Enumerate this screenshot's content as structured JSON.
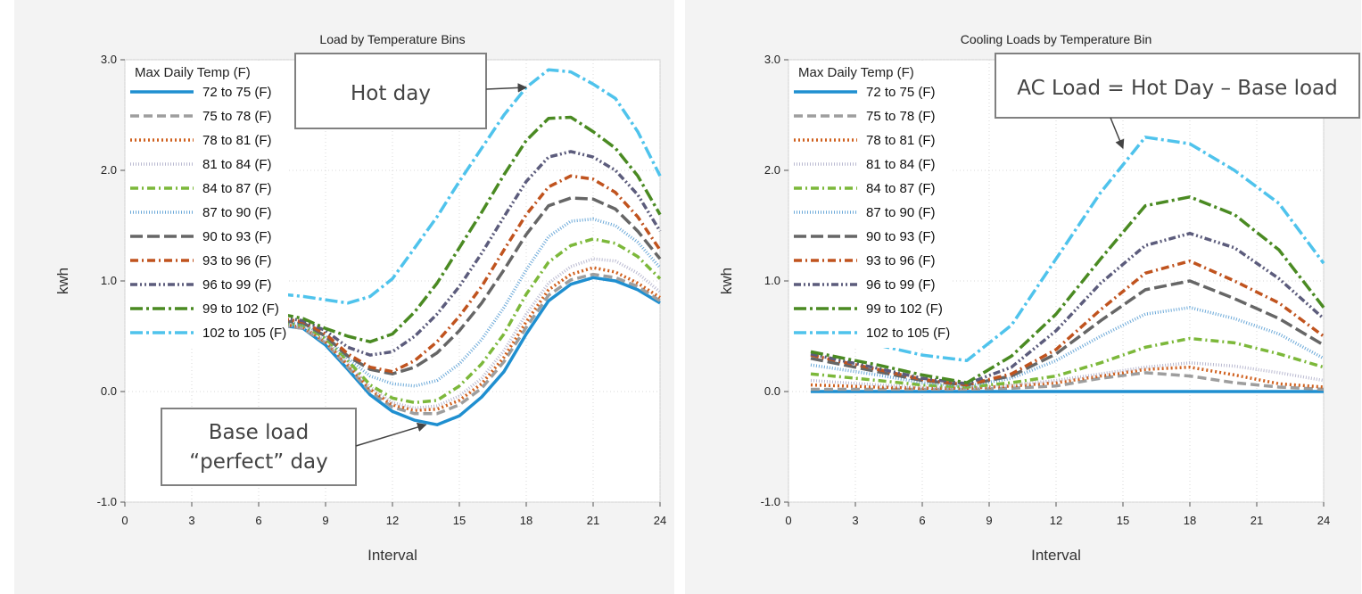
{
  "chart_data": [
    {
      "type": "line",
      "title": "Load by Temperature Bins",
      "xlabel": "Interval",
      "ylabel": "kwh",
      "xlim": [
        0,
        24
      ],
      "ylim": [
        -1.0,
        3.0
      ],
      "xticks": [
        0,
        3,
        6,
        9,
        12,
        15,
        18,
        21,
        24
      ],
      "yticks": [
        "-1.0",
        "0.0",
        "1.0",
        "2.0",
        "3.0"
      ],
      "grid": true,
      "legend": {
        "title": "Max Daily Temp (F)",
        "placement": "top-left"
      },
      "callouts": [
        {
          "text": "Hot day",
          "points_to": [
            18,
            2.75
          ]
        },
        {
          "text": "Base load\n“perfect” day",
          "points_to": [
            13.5,
            -0.3
          ]
        }
      ],
      "series": [
        {
          "name": "72 to 75 (F)",
          "color": "#1f8fd0",
          "dash": "solid",
          "x": [
            7,
            8,
            9,
            10,
            11,
            12,
            13,
            14,
            15,
            16,
            17,
            18,
            19,
            20,
            21,
            22,
            23,
            24
          ],
          "y": [
            0.6,
            0.57,
            0.42,
            0.2,
            -0.03,
            -0.18,
            -0.26,
            -0.3,
            -0.22,
            -0.05,
            0.18,
            0.52,
            0.82,
            0.97,
            1.03,
            1.0,
            0.92,
            0.8
          ]
        },
        {
          "name": "75 to 78 (F)",
          "color": "#9e9e9e",
          "dash": "dashed",
          "x": [
            7,
            8,
            9,
            10,
            11,
            12,
            13,
            14,
            15,
            16,
            17,
            18,
            19,
            20,
            21,
            22,
            23,
            24
          ],
          "y": [
            0.6,
            0.57,
            0.44,
            0.22,
            0.0,
            -0.14,
            -0.2,
            -0.2,
            -0.12,
            0.03,
            0.27,
            0.58,
            0.87,
            1.01,
            1.06,
            1.03,
            0.95,
            0.82
          ]
        },
        {
          "name": "78 to 81 (F)",
          "color": "#d0611f",
          "dash": "dotted",
          "x": [
            7,
            8,
            9,
            10,
            11,
            12,
            13,
            14,
            15,
            16,
            17,
            18,
            19,
            20,
            21,
            22,
            23,
            24
          ],
          "y": [
            0.61,
            0.58,
            0.45,
            0.24,
            0.02,
            -0.12,
            -0.17,
            -0.16,
            -0.08,
            0.07,
            0.31,
            0.63,
            0.92,
            1.06,
            1.12,
            1.08,
            0.98,
            0.85
          ]
        },
        {
          "name": "81 to 84 (F)",
          "color": "#b9b9d0",
          "dash": "fine",
          "x": [
            7,
            8,
            9,
            10,
            11,
            12,
            13,
            14,
            15,
            16,
            17,
            18,
            19,
            20,
            21,
            22,
            23,
            24
          ],
          "y": [
            0.61,
            0.58,
            0.46,
            0.26,
            0.04,
            -0.1,
            -0.15,
            -0.13,
            -0.04,
            0.12,
            0.37,
            0.7,
            0.98,
            1.13,
            1.2,
            1.18,
            1.07,
            0.9
          ]
        },
        {
          "name": "84 to 87 (F)",
          "color": "#7cb83a",
          "dash": "dashdot",
          "x": [
            7,
            8,
            9,
            10,
            11,
            12,
            13,
            14,
            15,
            16,
            17,
            18,
            19,
            20,
            21,
            22,
            23,
            24
          ],
          "y": [
            0.62,
            0.6,
            0.48,
            0.28,
            0.06,
            -0.06,
            -0.1,
            -0.08,
            0.05,
            0.25,
            0.52,
            0.88,
            1.17,
            1.32,
            1.38,
            1.34,
            1.22,
            1.02
          ]
        },
        {
          "name": "87 to 90 (F)",
          "color": "#6aa8d8",
          "dash": "fine",
          "x": [
            7,
            8,
            9,
            10,
            11,
            12,
            13,
            14,
            15,
            16,
            17,
            18,
            19,
            20,
            21,
            22,
            23,
            24
          ],
          "y": [
            0.63,
            0.61,
            0.5,
            0.3,
            0.14,
            0.07,
            0.05,
            0.1,
            0.25,
            0.47,
            0.76,
            1.1,
            1.4,
            1.54,
            1.56,
            1.5,
            1.35,
            1.12
          ]
        },
        {
          "name": "90 to 93 (F)",
          "color": "#666666",
          "dash": "longdash",
          "x": [
            7,
            8,
            9,
            10,
            11,
            12,
            13,
            14,
            15,
            16,
            17,
            18,
            19,
            20,
            21,
            22,
            23,
            24
          ],
          "y": [
            0.64,
            0.62,
            0.5,
            0.32,
            0.2,
            0.16,
            0.22,
            0.35,
            0.55,
            0.8,
            1.1,
            1.42,
            1.68,
            1.75,
            1.74,
            1.65,
            1.45,
            1.2
          ]
        },
        {
          "name": "93 to 96 (F)",
          "color": "#c0531e",
          "dash": "dashdot",
          "x": [
            7,
            8,
            9,
            10,
            11,
            12,
            13,
            14,
            15,
            16,
            17,
            18,
            19,
            20,
            21,
            22,
            23,
            24
          ],
          "y": [
            0.66,
            0.63,
            0.52,
            0.34,
            0.22,
            0.18,
            0.28,
            0.45,
            0.68,
            0.95,
            1.28,
            1.6,
            1.85,
            1.95,
            1.92,
            1.8,
            1.58,
            1.28
          ]
        },
        {
          "name": "96 to 99 (F)",
          "color": "#5c5c7c",
          "dash": "dashdotdot",
          "x": [
            7,
            8,
            9,
            10,
            11,
            12,
            13,
            14,
            15,
            16,
            17,
            18,
            19,
            20,
            21,
            22,
            23,
            24
          ],
          "y": [
            0.67,
            0.64,
            0.55,
            0.4,
            0.33,
            0.36,
            0.5,
            0.7,
            0.95,
            1.25,
            1.58,
            1.9,
            2.12,
            2.17,
            2.12,
            2.0,
            1.78,
            1.45
          ]
        },
        {
          "name": "99 to 102 (F)",
          "color": "#4a8a22",
          "dash": "longdashdot",
          "x": [
            7,
            8,
            9,
            10,
            11,
            12,
            13,
            14,
            15,
            16,
            17,
            18,
            19,
            20,
            21,
            22,
            23,
            24
          ],
          "y": [
            0.7,
            0.66,
            0.57,
            0.5,
            0.45,
            0.52,
            0.72,
            0.98,
            1.3,
            1.62,
            1.96,
            2.27,
            2.47,
            2.48,
            2.35,
            2.2,
            1.95,
            1.6
          ]
        },
        {
          "name": "102 to 105 (F)",
          "color": "#4fc3ec",
          "dash": "longdashdot",
          "x": [
            5,
            6,
            7,
            8,
            9,
            10,
            11,
            12,
            13,
            14,
            15,
            16,
            17,
            18,
            19,
            20,
            21,
            22,
            23,
            24
          ],
          "y": [
            0.9,
            0.89,
            0.88,
            0.86,
            0.83,
            0.8,
            0.86,
            1.02,
            1.3,
            1.58,
            1.9,
            2.2,
            2.5,
            2.75,
            2.91,
            2.89,
            2.78,
            2.65,
            2.35,
            1.95
          ]
        }
      ]
    },
    {
      "type": "line",
      "title": "Cooling Loads by Temperature Bin",
      "xlabel": "Interval",
      "ylabel": "kwh",
      "xlim": [
        0,
        24
      ],
      "ylim": [
        -1.0,
        3.0
      ],
      "xticks": [
        0,
        3,
        6,
        9,
        12,
        15,
        18,
        21,
        24
      ],
      "yticks": [
        "-1.0",
        "0.0",
        "1.0",
        "2.0",
        "3.0"
      ],
      "grid": true,
      "legend": {
        "title": "Max Daily Temp (F)",
        "placement": "top-left"
      },
      "callouts": [
        {
          "text": "AC Load = Hot Day – Base load",
          "points_to": [
            15,
            2.2
          ]
        }
      ],
      "series": [
        {
          "name": "72 to 75 (F)",
          "color": "#1f8fd0",
          "dash": "solid",
          "x": [
            1,
            24
          ],
          "y": [
            0.0,
            0.0
          ]
        },
        {
          "name": "75 to 78 (F)",
          "color": "#9e9e9e",
          "dash": "dashed",
          "x": [
            1,
            4,
            6,
            8,
            10,
            12,
            14,
            16,
            18,
            20,
            22,
            24
          ],
          "y": [
            0.02,
            0.02,
            0.02,
            0.02,
            0.03,
            0.05,
            0.12,
            0.17,
            0.14,
            0.08,
            0.04,
            0.02
          ]
        },
        {
          "name": "78 to 81 (F)",
          "color": "#d0611f",
          "dash": "dotted",
          "x": [
            1,
            4,
            6,
            8,
            10,
            12,
            14,
            16,
            18,
            20,
            22,
            24
          ],
          "y": [
            0.06,
            0.04,
            0.03,
            0.03,
            0.05,
            0.08,
            0.14,
            0.2,
            0.22,
            0.15,
            0.07,
            0.04
          ]
        },
        {
          "name": "81 to 84 (F)",
          "color": "#b9b9d0",
          "dash": "fine",
          "x": [
            1,
            4,
            6,
            8,
            10,
            12,
            14,
            16,
            18,
            20,
            22,
            24
          ],
          "y": [
            0.1,
            0.06,
            0.04,
            0.03,
            0.06,
            0.1,
            0.16,
            0.22,
            0.26,
            0.23,
            0.17,
            0.1
          ]
        },
        {
          "name": "84 to 87 (F)",
          "color": "#7cb83a",
          "dash": "dashdot",
          "x": [
            1,
            4,
            6,
            8,
            10,
            12,
            14,
            16,
            18,
            20,
            22,
            24
          ],
          "y": [
            0.16,
            0.1,
            0.06,
            0.04,
            0.08,
            0.14,
            0.26,
            0.4,
            0.48,
            0.44,
            0.34,
            0.22
          ]
        },
        {
          "name": "87 to 90 (F)",
          "color": "#6aa8d8",
          "dash": "fine",
          "x": [
            1,
            4,
            6,
            8,
            10,
            12,
            14,
            16,
            18,
            20,
            22,
            24
          ],
          "y": [
            0.24,
            0.15,
            0.08,
            0.05,
            0.12,
            0.28,
            0.5,
            0.7,
            0.76,
            0.66,
            0.52,
            0.3
          ]
        },
        {
          "name": "90 to 93 (F)",
          "color": "#666666",
          "dash": "longdash",
          "x": [
            1,
            4,
            6,
            8,
            10,
            12,
            14,
            16,
            18,
            20,
            22,
            24
          ],
          "y": [
            0.3,
            0.18,
            0.1,
            0.06,
            0.14,
            0.34,
            0.64,
            0.92,
            1.0,
            0.84,
            0.66,
            0.42
          ]
        },
        {
          "name": "93 to 96 (F)",
          "color": "#c0531e",
          "dash": "dashdot",
          "x": [
            1,
            4,
            6,
            8,
            10,
            12,
            14,
            16,
            18,
            20,
            22,
            24
          ],
          "y": [
            0.33,
            0.2,
            0.11,
            0.06,
            0.16,
            0.38,
            0.74,
            1.07,
            1.18,
            1.0,
            0.8,
            0.5
          ]
        },
        {
          "name": "96 to 99 (F)",
          "color": "#5c5c7c",
          "dash": "dashdotdot",
          "x": [
            1,
            4,
            6,
            8,
            10,
            12,
            14,
            16,
            18,
            20,
            22,
            24
          ],
          "y": [
            0.34,
            0.21,
            0.12,
            0.07,
            0.22,
            0.55,
            0.98,
            1.32,
            1.43,
            1.3,
            1.02,
            0.66
          ]
        },
        {
          "name": "99 to 102 (F)",
          "color": "#4a8a22",
          "dash": "longdashdot",
          "x": [
            1,
            4,
            6,
            8,
            10,
            12,
            14,
            16,
            18,
            20,
            22,
            24
          ],
          "y": [
            0.36,
            0.24,
            0.15,
            0.08,
            0.32,
            0.7,
            1.2,
            1.68,
            1.76,
            1.6,
            1.28,
            0.76
          ]
        },
        {
          "name": "102 to 105 (F)",
          "color": "#4fc3ec",
          "dash": "longdashdot",
          "x": [
            1,
            4,
            6,
            8,
            10,
            12,
            14,
            16,
            18,
            20,
            22,
            24
          ],
          "y": [
            0.5,
            0.42,
            0.33,
            0.28,
            0.6,
            1.2,
            1.8,
            2.3,
            2.24,
            2.0,
            1.7,
            1.16
          ]
        }
      ]
    }
  ]
}
